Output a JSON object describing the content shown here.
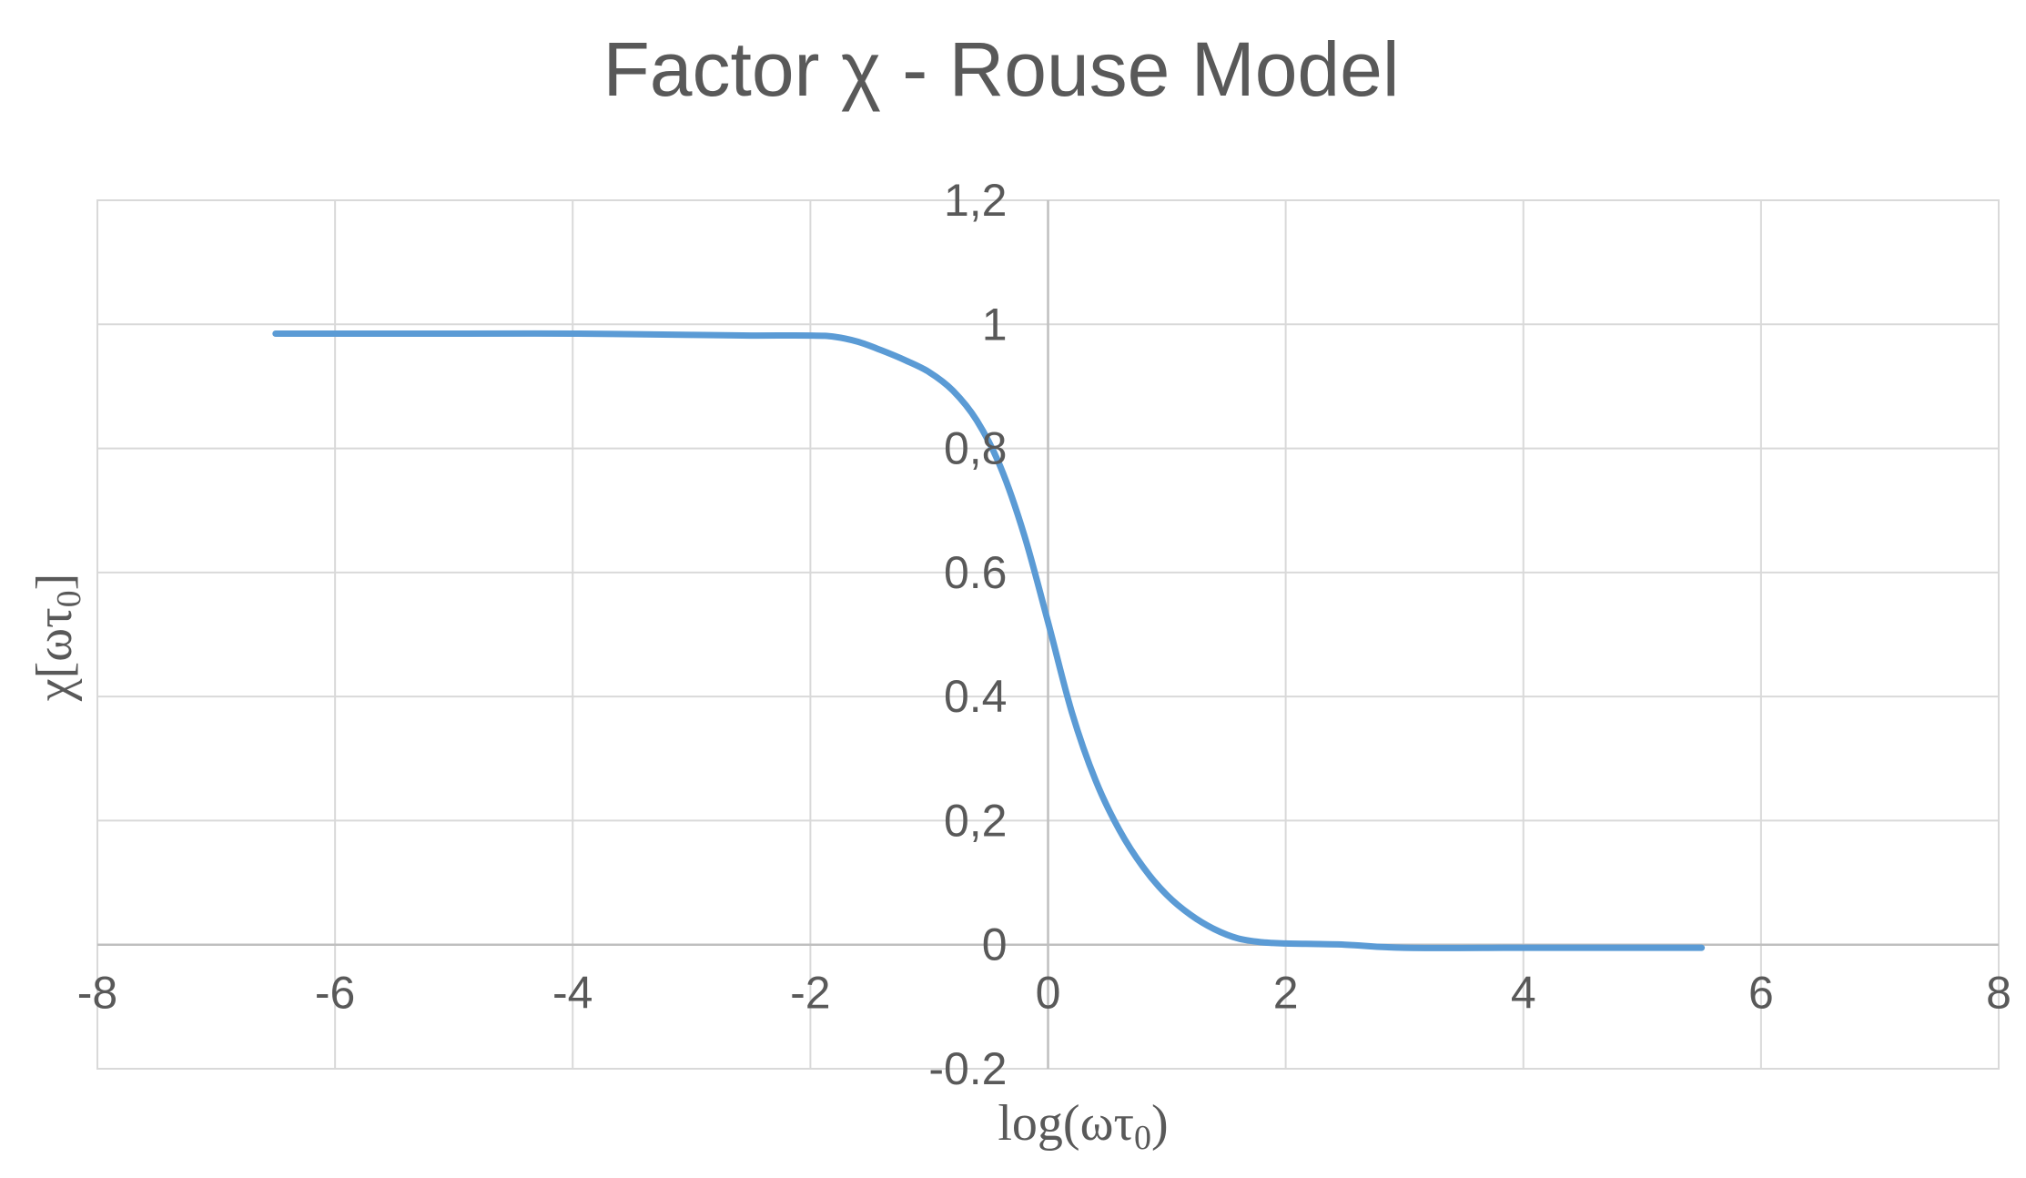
{
  "chart_data": {
    "type": "line",
    "title": "Factor χ  - Rouse Model",
    "xlabel": "log(ωτ",
    "xlabel_sub": "0",
    "xlabel_close": ")",
    "ylabel": "χ[ωτ",
    "ylabel_sub": "0",
    "ylabel_close": "]",
    "xlim": [
      -8,
      8
    ],
    "ylim": [
      -0.2,
      1.2
    ],
    "x_ticks": [
      -8,
      -6,
      -4,
      -2,
      0,
      2,
      4,
      6,
      8
    ],
    "x_tick_labels": [
      "-8",
      "-6",
      "-4",
      "-2",
      "0",
      "2",
      "4",
      "6",
      "8"
    ],
    "y_ticks": [
      -0.2,
      0,
      0.2,
      0.4,
      0.6,
      0.8,
      1,
      1.2
    ],
    "y_tick_labels": [
      "-0.2",
      "0",
      "0,2",
      "0.4",
      "0.6",
      "0,8",
      "1",
      "1,2"
    ],
    "grid": true,
    "legend": "none",
    "series_color": "#5b9bd5",
    "series": [
      {
        "x": [
          -6.5,
          -5.0,
          -4.0,
          -3.0,
          -2.5,
          -2.0,
          -1.8,
          -1.6,
          -1.4,
          -1.2,
          -1.0,
          -0.8,
          -0.6,
          -0.4,
          -0.2,
          0.0,
          0.2,
          0.4,
          0.6,
          0.8,
          1.0,
          1.2,
          1.4,
          1.6,
          1.8,
          2.0,
          2.5,
          3.0,
          4.0,
          5.0,
          5.5
        ],
        "y": [
          0.985,
          0.985,
          0.985,
          0.983,
          0.982,
          0.982,
          0.98,
          0.972,
          0.958,
          0.942,
          0.923,
          0.893,
          0.845,
          0.77,
          0.66,
          0.52,
          0.375,
          0.265,
          0.185,
          0.125,
          0.08,
          0.048,
          0.025,
          0.01,
          0.004,
          0.002,
          0.0,
          -0.005,
          -0.005,
          -0.005,
          -0.005
        ]
      }
    ]
  }
}
